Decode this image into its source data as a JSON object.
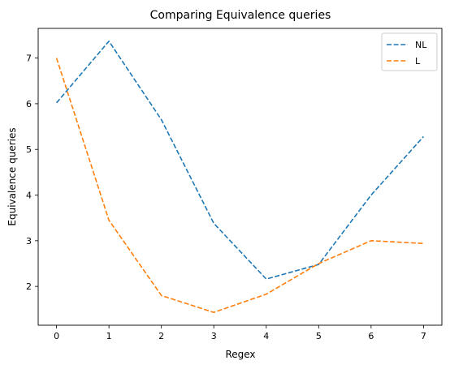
{
  "chart_data": {
    "type": "line",
    "title": "Comparing Equivalence queries",
    "xlabel": "Regex",
    "ylabel": "Equivalence queries",
    "xlim": [
      -0.35,
      7.35
    ],
    "ylim": [
      1.15,
      7.65
    ],
    "xticks": [
      0,
      1,
      2,
      3,
      4,
      5,
      6,
      7
    ],
    "yticks": [
      2,
      3,
      4,
      5,
      6,
      7
    ],
    "grid": false,
    "legend_position": "top-right",
    "x": [
      0,
      1,
      2,
      3,
      4,
      5,
      6,
      7
    ],
    "series": [
      {
        "name": "NL",
        "color": "#1f77b4",
        "style": "dashed",
        "values": [
          6.02,
          7.37,
          5.65,
          3.38,
          2.16,
          2.48,
          4.0,
          5.28
        ]
      },
      {
        "name": "L",
        "color": "#ff7f0e",
        "style": "dashed",
        "values": [
          7.0,
          3.45,
          1.8,
          1.43,
          1.83,
          2.5,
          3.0,
          2.94
        ]
      }
    ]
  }
}
